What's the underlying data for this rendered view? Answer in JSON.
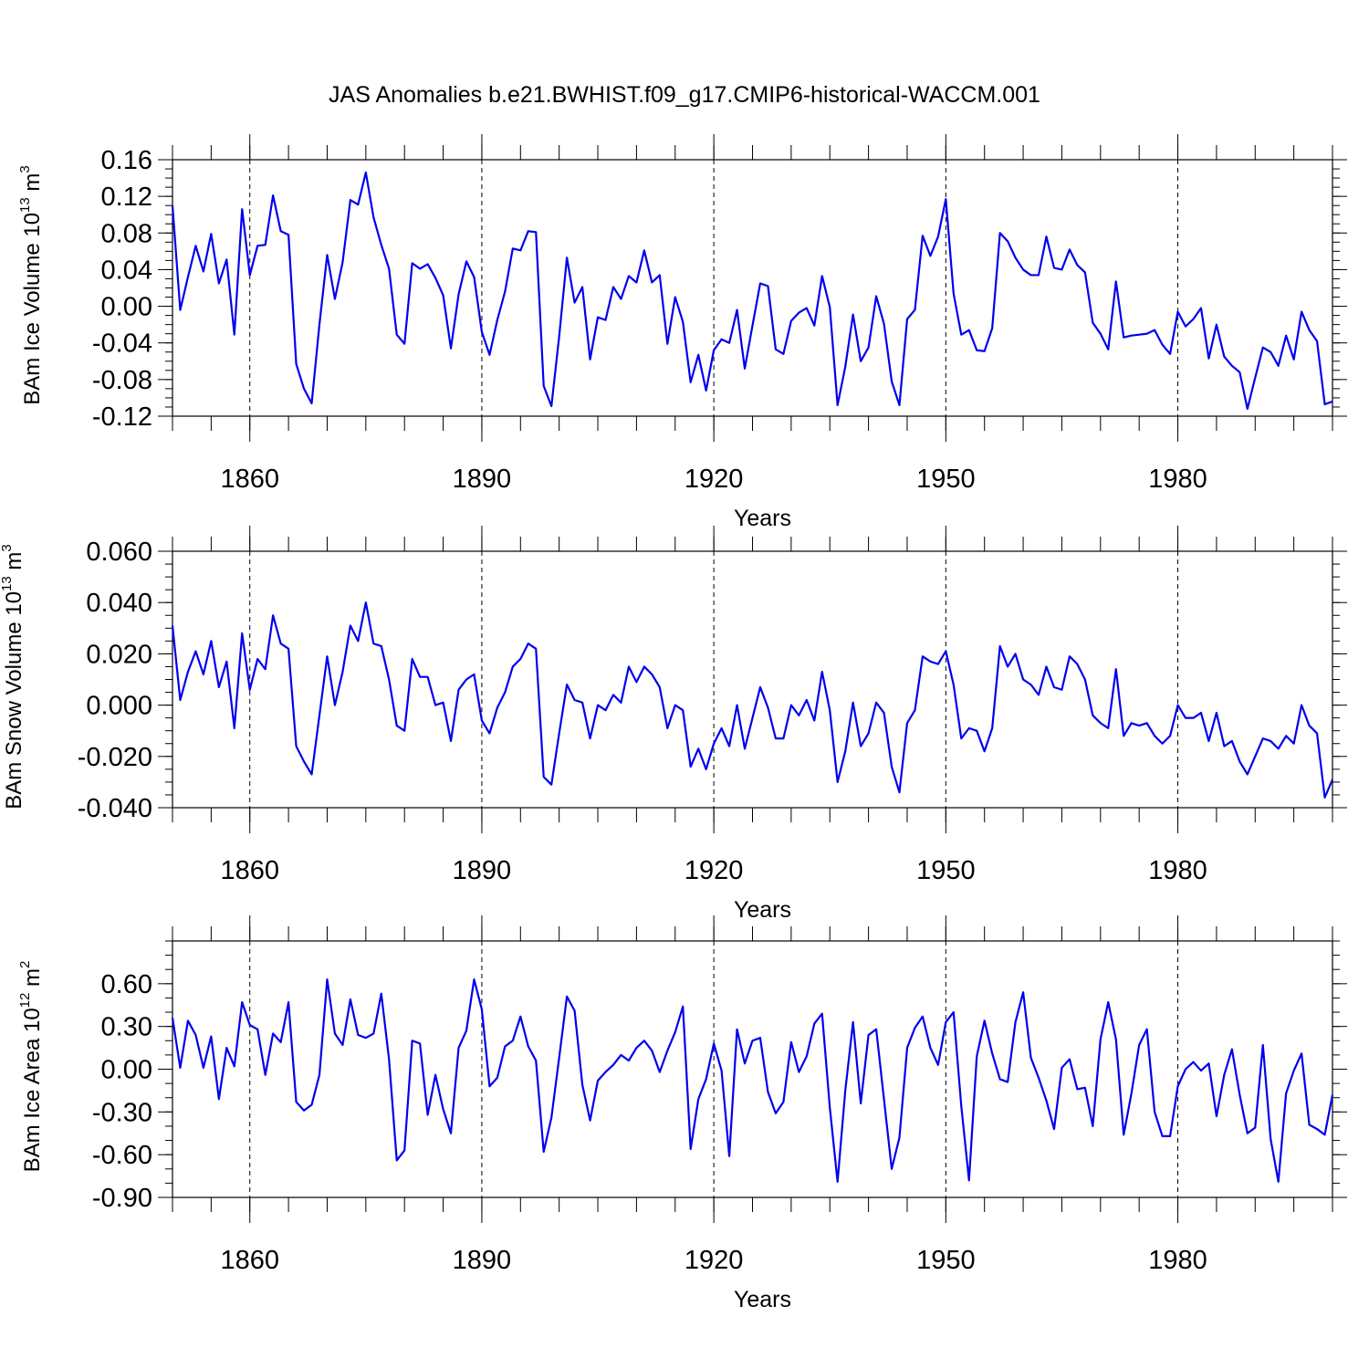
{
  "chart_data": {
    "title": "JAS Anomalies b.e21.BWHIST.f09_g17.CMIP6-historical-WACCM.001",
    "panels": [
      {
        "type": "line",
        "ylabel": "BAm Ice Volume 10",
        "ylabel_exp": "13",
        "ylabel_unit": " m",
        "ylabel_unit_exp": "3",
        "xlabel": "Years",
        "xlim": [
          1850,
          2000
        ],
        "ylim": [
          -0.12,
          0.16
        ],
        "yticks": [
          -0.12,
          -0.08,
          -0.04,
          0.0,
          0.04,
          0.08,
          0.12,
          0.16
        ],
        "ytick_labels": [
          "-0.12",
          "-0.08",
          "-0.04",
          "0.00",
          "0.04",
          "0.08",
          "0.12",
          "0.16"
        ],
        "yminor_step": 0.01,
        "xticks": [
          1860,
          1890,
          1920,
          1950,
          1980
        ],
        "xtick_labels": [
          "1860",
          "1890",
          "1920",
          "1950",
          "1980"
        ],
        "x_start": 1850,
        "values": [
          0.11,
          -0.004,
          0.032,
          0.066,
          0.038,
          0.079,
          0.025,
          0.051,
          -0.031,
          0.106,
          0.034,
          0.066,
          0.067,
          0.121,
          0.082,
          0.078,
          -0.063,
          -0.09,
          -0.106,
          -0.02,
          0.056,
          0.008,
          0.048,
          0.116,
          0.111,
          0.146,
          0.097,
          0.067,
          0.041,
          -0.031,
          -0.041,
          0.047,
          0.041,
          0.046,
          0.031,
          0.012,
          -0.046,
          0.013,
          0.049,
          0.032,
          -0.028,
          -0.053,
          -0.015,
          0.016,
          0.063,
          0.061,
          0.082,
          0.081,
          -0.087,
          -0.109,
          -0.033,
          0.053,
          0.004,
          0.021,
          -0.058,
          -0.012,
          -0.015,
          0.021,
          0.008,
          0.033,
          0.026,
          0.061,
          0.026,
          0.034,
          -0.041,
          0.01,
          -0.017,
          -0.083,
          -0.053,
          -0.092,
          -0.048,
          -0.036,
          -0.04,
          -0.004,
          -0.068,
          -0.021,
          0.025,
          0.022,
          -0.047,
          -0.052,
          -0.016,
          -0.007,
          -0.002,
          -0.021,
          0.033,
          -0.001,
          -0.108,
          -0.066,
          -0.009,
          -0.06,
          -0.045,
          0.011,
          -0.019,
          -0.082,
          -0.108,
          -0.014,
          -0.004,
          0.077,
          0.055,
          0.076,
          0.117,
          0.014,
          -0.031,
          -0.026,
          -0.048,
          -0.049,
          -0.024,
          0.08,
          0.071,
          0.053,
          0.04,
          0.034,
          0.034,
          0.076,
          0.042,
          0.04,
          0.062,
          0.045,
          0.037,
          -0.018,
          -0.03,
          -0.047,
          0.027,
          -0.034,
          -0.032,
          -0.031,
          -0.03,
          -0.026,
          -0.042,
          -0.052,
          -0.006,
          -0.022,
          -0.014,
          -0.002,
          -0.057,
          -0.02,
          -0.055,
          -0.065,
          -0.072,
          -0.112,
          -0.078,
          -0.045,
          -0.05,
          -0.065,
          -0.032,
          -0.058,
          -0.006,
          -0.026,
          -0.038,
          -0.107,
          -0.104
        ]
      },
      {
        "type": "line",
        "ylabel": "BAm Snow Volume 10",
        "ylabel_exp": "13",
        "ylabel_unit": " m",
        "ylabel_unit_exp": "3",
        "xlabel": "Years",
        "xlim": [
          1850,
          2000
        ],
        "ylim": [
          -0.04,
          0.06
        ],
        "yticks": [
          -0.04,
          -0.02,
          0.0,
          0.02,
          0.04,
          0.06
        ],
        "ytick_labels": [
          "-0.040",
          "-0.020",
          "0.000",
          "0.020",
          "0.040",
          "0.060"
        ],
        "yminor_step": 0.005,
        "xticks": [
          1860,
          1890,
          1920,
          1950,
          1980
        ],
        "xtick_labels": [
          "1860",
          "1890",
          "1920",
          "1950",
          "1980"
        ],
        "x_start": 1850,
        "values": [
          0.031,
          0.002,
          0.013,
          0.021,
          0.012,
          0.025,
          0.007,
          0.017,
          -0.009,
          0.028,
          0.006,
          0.018,
          0.014,
          0.035,
          0.024,
          0.022,
          -0.016,
          -0.022,
          -0.027,
          -0.004,
          0.019,
          0.0,
          0.013,
          0.031,
          0.025,
          0.04,
          0.024,
          0.023,
          0.01,
          -0.008,
          -0.01,
          0.018,
          0.011,
          0.011,
          0.0,
          0.001,
          -0.014,
          0.006,
          0.01,
          0.012,
          -0.006,
          -0.011,
          -0.001,
          0.005,
          0.015,
          0.018,
          0.024,
          0.022,
          -0.028,
          -0.031,
          -0.011,
          0.008,
          0.002,
          0.001,
          -0.013,
          0.0,
          -0.002,
          0.004,
          0.001,
          0.015,
          0.009,
          0.015,
          0.012,
          0.007,
          -0.009,
          0.0,
          -0.002,
          -0.024,
          -0.017,
          -0.025,
          -0.015,
          -0.009,
          -0.016,
          0.0,
          -0.017,
          -0.005,
          0.007,
          -0.001,
          -0.013,
          -0.013,
          0.0,
          -0.004,
          0.002,
          -0.006,
          0.013,
          -0.002,
          -0.03,
          -0.018,
          0.001,
          -0.016,
          -0.011,
          0.001,
          -0.003,
          -0.024,
          -0.034,
          -0.007,
          -0.002,
          0.019,
          0.017,
          0.016,
          0.021,
          0.008,
          -0.013,
          -0.009,
          -0.01,
          -0.018,
          -0.009,
          0.023,
          0.015,
          0.02,
          0.01,
          0.008,
          0.004,
          0.015,
          0.007,
          0.006,
          0.019,
          0.016,
          0.01,
          -0.004,
          -0.007,
          -0.009,
          0.014,
          -0.012,
          -0.007,
          -0.008,
          -0.007,
          -0.012,
          -0.015,
          -0.012,
          -0.0,
          -0.005,
          -0.005,
          -0.003,
          -0.014,
          -0.003,
          -0.016,
          -0.014,
          -0.022,
          -0.027,
          -0.02,
          -0.013,
          -0.014,
          -0.017,
          -0.012,
          -0.015,
          0.0,
          -0.008,
          -0.011,
          -0.036,
          -0.029
        ]
      },
      {
        "type": "line",
        "ylabel": "BAm Ice Area 10",
        "ylabel_exp": "12",
        "ylabel_unit": " m",
        "ylabel_unit_exp": "2",
        "xlabel": "Years",
        "xlim": [
          1850,
          2000
        ],
        "ylim": [
          -0.9,
          0.9
        ],
        "yticks": [
          -0.9,
          -0.6,
          -0.3,
          0.0,
          0.3,
          0.6
        ],
        "ytick_labels": [
          "-0.90",
          "-0.60",
          "-0.30",
          "0.00",
          "0.30",
          "0.60"
        ],
        "yminor_step": 0.1,
        "xticks": [
          1860,
          1890,
          1920,
          1950,
          1980
        ],
        "xtick_labels": [
          "1860",
          "1890",
          "1920",
          "1950",
          "1980"
        ],
        "x_start": 1850,
        "values": [
          0.36,
          0.01,
          0.34,
          0.24,
          0.01,
          0.23,
          -0.21,
          0.15,
          0.02,
          0.47,
          0.31,
          0.28,
          -0.04,
          0.25,
          0.19,
          0.47,
          -0.23,
          -0.29,
          -0.25,
          -0.04,
          0.63,
          0.25,
          0.17,
          0.49,
          0.24,
          0.22,
          0.25,
          0.53,
          0.07,
          -0.64,
          -0.57,
          0.2,
          0.18,
          -0.32,
          -0.04,
          -0.28,
          -0.45,
          0.15,
          0.27,
          0.63,
          0.42,
          -0.12,
          -0.06,
          0.16,
          0.2,
          0.37,
          0.16,
          0.06,
          -0.58,
          -0.34,
          0.08,
          0.51,
          0.41,
          -0.11,
          -0.36,
          -0.08,
          -0.02,
          0.03,
          0.1,
          0.06,
          0.15,
          0.2,
          0.13,
          -0.02,
          0.13,
          0.26,
          0.44,
          -0.56,
          -0.21,
          -0.07,
          0.18,
          -0.01,
          -0.61,
          0.28,
          0.04,
          0.2,
          0.22,
          -0.16,
          -0.31,
          -0.23,
          0.19,
          -0.02,
          0.09,
          0.32,
          0.39,
          -0.27,
          -0.79,
          -0.15,
          0.33,
          -0.24,
          0.24,
          0.28,
          -0.21,
          -0.7,
          -0.48,
          0.15,
          0.29,
          0.37,
          0.15,
          0.03,
          0.33,
          0.4,
          -0.26,
          -0.78,
          0.09,
          0.34,
          0.11,
          -0.07,
          -0.09,
          0.33,
          0.54,
          0.08,
          -0.06,
          -0.22,
          -0.42,
          0.01,
          0.07,
          -0.14,
          -0.13,
          -0.4,
          0.21,
          0.47,
          0.21,
          -0.46,
          -0.17,
          0.17,
          0.28,
          -0.3,
          -0.47,
          -0.47,
          -0.12,
          0.0,
          0.05,
          -0.01,
          0.04,
          -0.33,
          -0.04,
          0.14,
          -0.18,
          -0.45,
          -0.41,
          0.17,
          -0.49,
          -0.79,
          -0.17,
          -0.01,
          0.11,
          -0.39,
          -0.42,
          -0.46,
          -0.18
        ]
      }
    ]
  },
  "style": {
    "line_color": "#0000ee",
    "axis_color": "#000000",
    "background": "#ffffff"
  }
}
